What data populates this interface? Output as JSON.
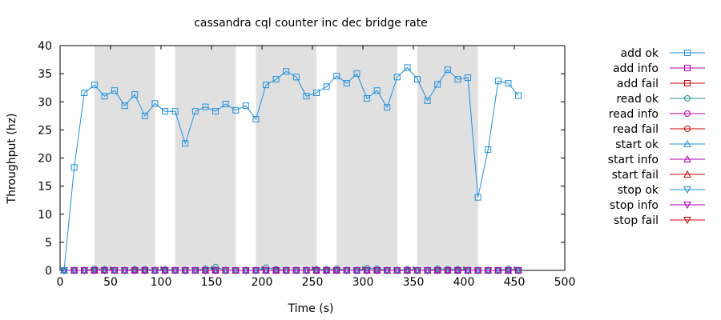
{
  "chart_data": {
    "type": "line",
    "title": "cassandra cql counter inc dec bridge rate",
    "xlabel": "Time (s)",
    "ylabel": "Throughput (hz)",
    "xlim": [
      0,
      500
    ],
    "ylim": [
      0,
      40
    ],
    "x_ticks": [
      0,
      50,
      100,
      150,
      200,
      250,
      300,
      350,
      400,
      450,
      500
    ],
    "y_ticks": [
      0,
      5,
      10,
      15,
      20,
      25,
      30,
      35,
      40
    ],
    "grid": false,
    "legend_position": "right",
    "shaded_x_ranges": [
      [
        34,
        94
      ],
      [
        114,
        174
      ],
      [
        194,
        254
      ],
      [
        274,
        334
      ],
      [
        354,
        414
      ]
    ],
    "shade_color": "#e0e0e0",
    "x": [
      4,
      14,
      24,
      34,
      44,
      54,
      64,
      74,
      84,
      94,
      104,
      114,
      124,
      134,
      144,
      154,
      164,
      174,
      184,
      194,
      204,
      214,
      224,
      234,
      244,
      254,
      264,
      274,
      284,
      294,
      304,
      314,
      324,
      334,
      344,
      354,
      364,
      374,
      384,
      394,
      404,
      414,
      424,
      434,
      444,
      454
    ],
    "series": [
      {
        "name": "add ok",
        "color": "#1f8fdc",
        "marker": "square",
        "values": [
          0,
          18.3,
          31.6,
          33.0,
          31.0,
          32.0,
          29.3,
          31.3,
          27.5,
          29.7,
          28.3,
          28.3,
          22.6,
          28.3,
          29.1,
          28.3,
          29.6,
          28.5,
          29.3,
          26.9,
          33.0,
          34.0,
          35.4,
          34.4,
          31.0,
          31.6,
          32.7,
          34.6,
          33.3,
          35.0,
          30.6,
          32.0,
          29.0,
          34.4,
          36.1,
          34.0,
          30.2,
          33.1,
          35.7,
          34.0,
          34.3,
          13.0,
          21.5,
          33.7,
          33.3,
          31.1
        ]
      },
      {
        "name": "add info",
        "color": "#b000b0",
        "marker": "square",
        "values": [
          0,
          0,
          0,
          0,
          0,
          0,
          0,
          0,
          0,
          0,
          0,
          0,
          0,
          0,
          0,
          0,
          0,
          0,
          0,
          0,
          0,
          0,
          0,
          0,
          0,
          0,
          0,
          0,
          0,
          0,
          0,
          0,
          0,
          0,
          0,
          0,
          0,
          0,
          0,
          0,
          0,
          0,
          0,
          0,
          0,
          0
        ]
      },
      {
        "name": "add fail",
        "color": "#cc0000",
        "marker": "square",
        "values": [
          0,
          0,
          0,
          0,
          0,
          0,
          0,
          0,
          0,
          0,
          0,
          0,
          0,
          0,
          0,
          0,
          0,
          0,
          0,
          0,
          0,
          0,
          0,
          0,
          0,
          0,
          0,
          0,
          0,
          0,
          0,
          0,
          0,
          0,
          0,
          0,
          0,
          0,
          0,
          0,
          0,
          0,
          0,
          0,
          0,
          0
        ]
      },
      {
        "name": "read ok",
        "color": "#1f8f8f",
        "marker": "circle",
        "values": [
          0,
          0,
          0,
          0.3,
          0.2,
          0,
          0,
          0.2,
          0.2,
          0,
          0.2,
          0,
          0,
          0,
          0.3,
          0.6,
          0,
          0,
          0,
          0,
          0.5,
          0.2,
          0,
          0,
          0,
          0.2,
          0.2,
          0.3,
          0,
          0,
          0.4,
          0.3,
          0,
          0,
          0.2,
          0,
          0,
          0.3,
          0.2,
          0.2,
          0,
          0,
          0,
          0,
          0.3,
          0
        ]
      },
      {
        "name": "read info",
        "color": "#b000b0",
        "marker": "circle",
        "values": [
          0,
          0,
          0,
          0,
          0,
          0,
          0,
          0,
          0,
          0,
          0,
          0,
          0,
          0,
          0,
          0,
          0,
          0,
          0,
          0,
          0,
          0,
          0,
          0,
          0,
          0,
          0,
          0,
          0,
          0,
          0,
          0,
          0,
          0,
          0,
          0,
          0,
          0,
          0,
          0,
          0,
          0,
          0,
          0,
          0,
          0
        ]
      },
      {
        "name": "read fail",
        "color": "#cc0000",
        "marker": "circle",
        "values": [
          0,
          0,
          0,
          0,
          0,
          0,
          0,
          0,
          0,
          0,
          0,
          0,
          0,
          0,
          0,
          0,
          0,
          0,
          0,
          0,
          0,
          0,
          0,
          0,
          0,
          0,
          0,
          0,
          0,
          0,
          0,
          0,
          0,
          0,
          0,
          0,
          0,
          0,
          0,
          0,
          0,
          0,
          0,
          0,
          0,
          0
        ]
      },
      {
        "name": "start ok",
        "color": "#1f8fdc",
        "marker": "triangle-up",
        "values": [
          0,
          0,
          0,
          0,
          0,
          0,
          0,
          0,
          0,
          0,
          0,
          0,
          0,
          0,
          0,
          0,
          0,
          0,
          0,
          0,
          0,
          0,
          0,
          0,
          0,
          0,
          0,
          0,
          0,
          0,
          0,
          0,
          0,
          0,
          0,
          0,
          0,
          0,
          0,
          0,
          0,
          0,
          0,
          0,
          0,
          0
        ]
      },
      {
        "name": "start info",
        "color": "#b000b0",
        "marker": "triangle-up",
        "values": [
          0,
          0,
          0,
          0,
          0,
          0,
          0,
          0,
          0,
          0,
          0,
          0,
          0,
          0,
          0,
          0,
          0,
          0,
          0,
          0,
          0,
          0,
          0,
          0,
          0,
          0,
          0,
          0,
          0,
          0,
          0,
          0,
          0,
          0,
          0,
          0,
          0,
          0,
          0,
          0,
          0,
          0,
          0,
          0,
          0,
          0
        ]
      },
      {
        "name": "start fail",
        "color": "#cc0000",
        "marker": "triangle-up",
        "values": [
          0,
          0,
          0,
          0,
          0,
          0,
          0,
          0,
          0,
          0,
          0,
          0,
          0,
          0,
          0,
          0,
          0,
          0,
          0,
          0,
          0,
          0,
          0,
          0,
          0,
          0,
          0,
          0,
          0,
          0,
          0,
          0,
          0,
          0,
          0,
          0,
          0,
          0,
          0,
          0,
          0,
          0,
          0,
          0,
          0,
          0
        ]
      },
      {
        "name": "stop ok",
        "color": "#1f8fdc",
        "marker": "triangle-down",
        "values": [
          0,
          0,
          0,
          0,
          0,
          0,
          0,
          0,
          0,
          0,
          0,
          0,
          0,
          0,
          0,
          0,
          0,
          0,
          0,
          0,
          0,
          0,
          0,
          0,
          0,
          0,
          0,
          0,
          0,
          0,
          0,
          0,
          0,
          0,
          0,
          0,
          0,
          0,
          0,
          0,
          0,
          0,
          0,
          0,
          0,
          0
        ]
      },
      {
        "name": "stop info",
        "color": "#b000b0",
        "marker": "triangle-down",
        "values": [
          0,
          0,
          0,
          0,
          0,
          0,
          0,
          0,
          0,
          0,
          0,
          0,
          0,
          0,
          0,
          0,
          0,
          0,
          0,
          0,
          0,
          0,
          0,
          0,
          0,
          0,
          0,
          0,
          0,
          0,
          0,
          0,
          0,
          0,
          0,
          0,
          0,
          0,
          0,
          0,
          0,
          0,
          0,
          0,
          0,
          0
        ]
      },
      {
        "name": "stop fail",
        "color": "#cc0000",
        "marker": "triangle-down",
        "values": [
          0,
          0,
          0,
          0,
          0,
          0,
          0,
          0,
          0,
          0,
          0,
          0,
          0,
          0,
          0,
          0,
          0,
          0,
          0,
          0,
          0,
          0,
          0,
          0,
          0,
          0,
          0,
          0,
          0,
          0,
          0,
          0,
          0,
          0,
          0,
          0,
          0,
          0,
          0,
          0,
          0,
          0,
          0,
          0,
          0,
          0
        ]
      }
    ]
  }
}
